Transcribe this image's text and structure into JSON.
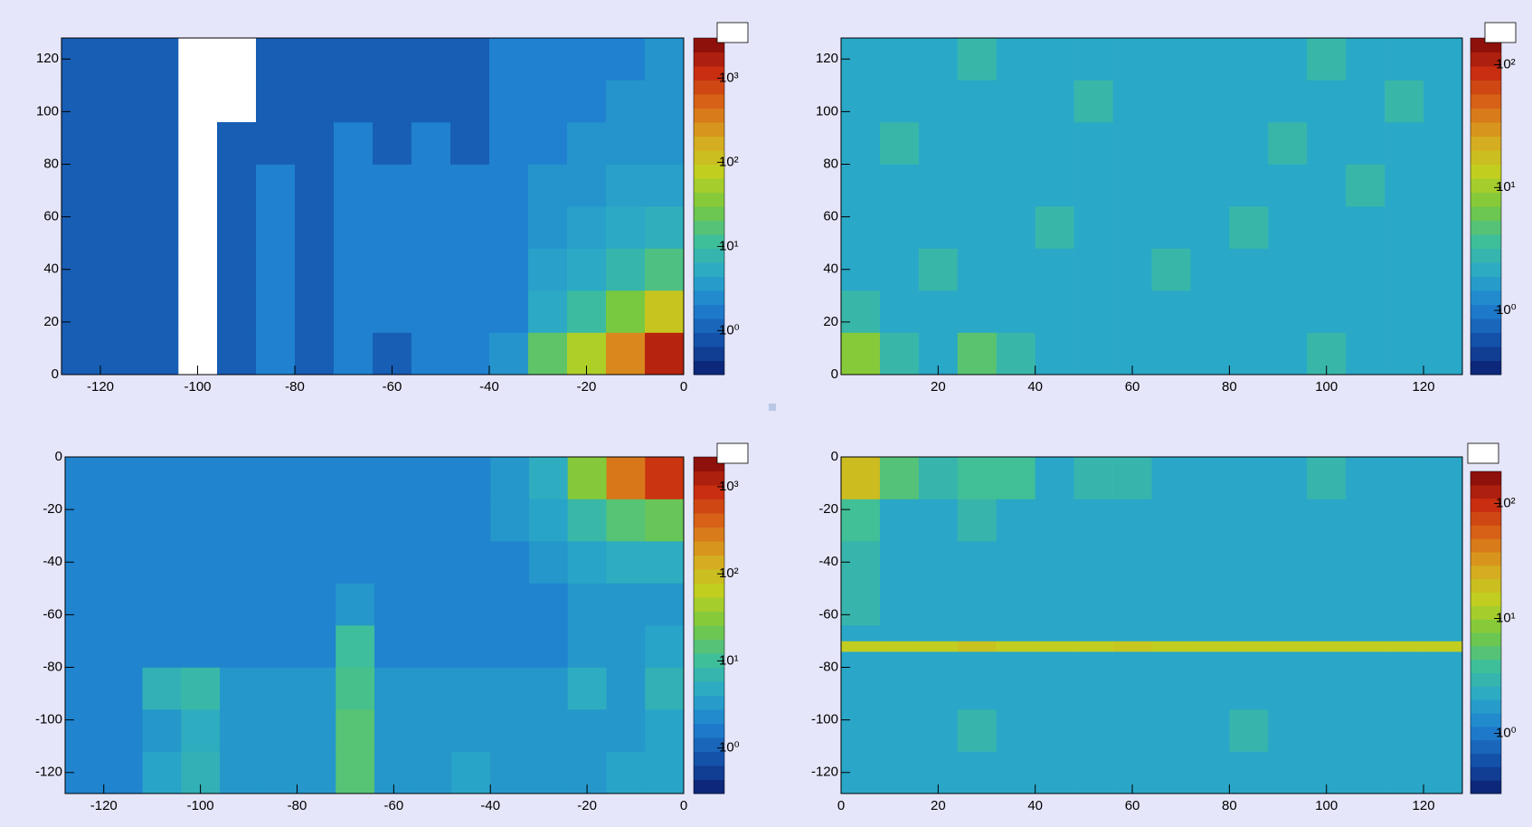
{
  "chart_data": [
    {
      "type": "heatmap",
      "xlim": [
        -128,
        0
      ],
      "ylim": [
        0,
        128
      ],
      "xticks": [
        -120,
        -100,
        -80,
        -60,
        -40,
        -20,
        0
      ],
      "yticks": [
        0,
        20,
        40,
        60,
        80,
        100,
        120
      ],
      "xbins": [
        -128,
        -120,
        -112,
        -104,
        -96,
        -88,
        -80,
        -72,
        -64,
        -56,
        -48,
        -40,
        -32,
        -24,
        -16,
        -8,
        0
      ],
      "ybins": [
        0,
        16,
        32,
        48,
        64,
        80,
        96,
        112,
        128
      ],
      "z": [
        [
          1,
          1,
          1,
          null,
          1,
          2,
          1,
          2,
          1,
          2,
          2,
          3,
          20,
          60,
          300,
          1500
        ],
        [
          1,
          1,
          1,
          null,
          1,
          2,
          1,
          2,
          2,
          2,
          2,
          2,
          5,
          10,
          30,
          100
        ],
        [
          1,
          1,
          1,
          null,
          1,
          2,
          1,
          2,
          2,
          2,
          2,
          2,
          4,
          5,
          8,
          15
        ],
        [
          1,
          1,
          1,
          null,
          1,
          2,
          1,
          2,
          2,
          2,
          2,
          2,
          3,
          4,
          5,
          6
        ],
        [
          1,
          1,
          1,
          null,
          1,
          2,
          1,
          2,
          2,
          2,
          2,
          2,
          3,
          3,
          4,
          4
        ],
        [
          1,
          1,
          1,
          null,
          1,
          1,
          1,
          2,
          1,
          2,
          1,
          2,
          2,
          3,
          3,
          3
        ],
        [
          1,
          1,
          1,
          null,
          null,
          1,
          1,
          1,
          1,
          1,
          1,
          2,
          2,
          2,
          3,
          3
        ],
        [
          1,
          1,
          1,
          null,
          null,
          1,
          1,
          1,
          1,
          1,
          1,
          2,
          2,
          2,
          2,
          3
        ]
      ],
      "zlog": true,
      "zlim": [
        0.3,
        3000
      ],
      "zticks": [
        {
          "value": 1,
          "label": "10⁰"
        },
        {
          "value": 10,
          "label": "10¹"
        },
        {
          "value": 100,
          "label": "10²"
        },
        {
          "value": 1000,
          "label": "10³"
        }
      ],
      "palette": [
        "#0b1e6e",
        "#1450a8",
        "#1f7fd0",
        "#2aa8c8",
        "#40bf98",
        "#78c840",
        "#c0d020",
        "#d8a820",
        "#d86818",
        "#c82c10",
        "#800a0a"
      ]
    },
    {
      "type": "heatmap",
      "xlim": [
        0,
        128
      ],
      "ylim": [
        0,
        128
      ],
      "xticks": [
        20,
        40,
        60,
        80,
        100,
        120
      ],
      "yticks": [
        0,
        20,
        40,
        60,
        80,
        100,
        120
      ],
      "xbins": [
        0,
        8,
        16,
        24,
        32,
        40,
        48,
        56,
        64,
        72,
        80,
        88,
        96,
        104,
        112,
        120,
        128
      ],
      "ybins": [
        0,
        16,
        32,
        48,
        64,
        80,
        96,
        112,
        128
      ],
      "z": [
        [
          8,
          3,
          2,
          5,
          3,
          2,
          2,
          2,
          2,
          2,
          2,
          2,
          3,
          2,
          2,
          2
        ],
        [
          3,
          2,
          2,
          2,
          2,
          2,
          2,
          2,
          2,
          2,
          2,
          2,
          2,
          2,
          2,
          2
        ],
        [
          2,
          2,
          3,
          2,
          2,
          2,
          2,
          2,
          3,
          2,
          2,
          2,
          2,
          2,
          2,
          2
        ],
        [
          2,
          2,
          2,
          2,
          2,
          3,
          2,
          2,
          2,
          2,
          3,
          2,
          2,
          2,
          2,
          2
        ],
        [
          2,
          2,
          2,
          2,
          2,
          2,
          2,
          2,
          2,
          2,
          2,
          2,
          2,
          3,
          2,
          2
        ],
        [
          2,
          3,
          2,
          2,
          2,
          2,
          2,
          2,
          2,
          2,
          2,
          3,
          2,
          2,
          2,
          2
        ],
        [
          2,
          2,
          2,
          2,
          2,
          2,
          3,
          2,
          2,
          2,
          2,
          2,
          2,
          2,
          3,
          2
        ],
        [
          2,
          2,
          2,
          3,
          2,
          2,
          2,
          2,
          2,
          2,
          2,
          2,
          3,
          2,
          2,
          2
        ]
      ],
      "zlog": true,
      "zlim": [
        0.3,
        165
      ],
      "zticks": [
        {
          "value": 1,
          "label": "10⁰"
        },
        {
          "value": 10,
          "label": "10¹"
        },
        {
          "value": 100,
          "label": "10²"
        }
      ],
      "palette": [
        "#0b1e6e",
        "#1450a8",
        "#1f7fd0",
        "#2aa8c8",
        "#40bf98",
        "#78c840",
        "#c0d020",
        "#d8a820",
        "#d86818",
        "#c82c10",
        "#800a0a"
      ]
    },
    {
      "type": "heatmap",
      "xlim": [
        -128,
        0
      ],
      "ylim": [
        -128,
        0
      ],
      "xticks": [
        -120,
        -100,
        -80,
        -60,
        -40,
        -20,
        0
      ],
      "yticks": [
        -120,
        -100,
        -80,
        -60,
        -40,
        -20,
        0
      ],
      "xbins": [
        -128,
        -120,
        -112,
        -104,
        -96,
        -88,
        -80,
        -72,
        -64,
        -56,
        -48,
        -40,
        -32,
        -24,
        -16,
        -8,
        0
      ],
      "ybins": [
        -128,
        -112,
        -96,
        -80,
        -64,
        -48,
        -32,
        -16,
        0
      ],
      "z": [
        [
          2,
          2,
          4,
          6,
          3,
          3,
          3,
          15,
          3,
          3,
          4,
          3,
          3,
          3,
          4,
          4
        ],
        [
          2,
          2,
          3,
          5,
          3,
          3,
          3,
          15,
          3,
          3,
          3,
          3,
          3,
          3,
          3,
          4
        ],
        [
          2,
          2,
          6,
          8,
          3,
          3,
          3,
          12,
          3,
          3,
          3,
          3,
          3,
          5,
          3,
          6
        ],
        [
          2,
          2,
          2,
          2,
          2,
          2,
          2,
          10,
          2,
          2,
          2,
          2,
          2,
          3,
          3,
          4
        ],
        [
          2,
          2,
          2,
          2,
          2,
          2,
          2,
          3,
          2,
          2,
          2,
          2,
          2,
          3,
          3,
          3
        ],
        [
          2,
          2,
          2,
          2,
          2,
          2,
          2,
          2,
          2,
          2,
          2,
          2,
          3,
          4,
          5,
          5
        ],
        [
          2,
          2,
          2,
          2,
          2,
          2,
          2,
          2,
          2,
          2,
          2,
          3,
          4,
          8,
          15,
          20
        ],
        [
          2,
          2,
          2,
          2,
          2,
          2,
          2,
          2,
          2,
          2,
          2,
          3,
          5,
          30,
          300,
          800
        ]
      ],
      "zlog": true,
      "zlim": [
        0.3,
        2200
      ],
      "zticks": [
        {
          "value": 1,
          "label": "10⁰"
        },
        {
          "value": 10,
          "label": "10¹"
        },
        {
          "value": 100,
          "label": "10²"
        },
        {
          "value": 1000,
          "label": "10³"
        }
      ],
      "palette": [
        "#0b1e6e",
        "#1450a8",
        "#1f7fd0",
        "#2aa8c8",
        "#40bf98",
        "#78c840",
        "#c0d020",
        "#d8a820",
        "#d86818",
        "#c82c10",
        "#800a0a"
      ]
    },
    {
      "type": "heatmap",
      "xlim": [
        0,
        128
      ],
      "ylim": [
        -128,
        0
      ],
      "xticks": [
        0,
        20,
        40,
        60,
        80,
        100,
        120
      ],
      "yticks": [
        -120,
        -100,
        -80,
        -60,
        -40,
        -20,
        0
      ],
      "xbins": [
        0,
        8,
        16,
        24,
        32,
        40,
        48,
        56,
        64,
        72,
        80,
        88,
        96,
        104,
        112,
        120,
        128
      ],
      "ybins": [
        -128,
        -112,
        -96,
        -80,
        -74,
        -70,
        -64,
        -48,
        -32,
        -16,
        0
      ],
      "z": [
        [
          2,
          2,
          2,
          2,
          2,
          2,
          2,
          2,
          2,
          2,
          2,
          2,
          2,
          2,
          2,
          2
        ],
        [
          2,
          2,
          2,
          3,
          2,
          2,
          2,
          2,
          2,
          2,
          3,
          2,
          2,
          2,
          2,
          2
        ],
        [
          2,
          2,
          2,
          2,
          2,
          2,
          2,
          2,
          2,
          2,
          2,
          2,
          2,
          2,
          2,
          2
        ],
        [
          2,
          2,
          2,
          2,
          2,
          2,
          2,
          2,
          2,
          2,
          2,
          2,
          2,
          2,
          2,
          2
        ],
        [
          15,
          15,
          15,
          18,
          15,
          15,
          15,
          17,
          15,
          15,
          15,
          15,
          15,
          15,
          15,
          15
        ],
        [
          2,
          2,
          2,
          2,
          2,
          2,
          2,
          2,
          2,
          2,
          2,
          2,
          2,
          2,
          2,
          2
        ],
        [
          3,
          2,
          2,
          2,
          2,
          2,
          2,
          2,
          2,
          2,
          2,
          2,
          2,
          2,
          2,
          2
        ],
        [
          3,
          2,
          2,
          2,
          2,
          2,
          2,
          2,
          2,
          2,
          2,
          2,
          2,
          2,
          2,
          2
        ],
        [
          4,
          2,
          2,
          3,
          2,
          2,
          2,
          2,
          2,
          2,
          2,
          2,
          2,
          2,
          2,
          2
        ],
        [
          20,
          5,
          3,
          4,
          4,
          2,
          3,
          3,
          2,
          2,
          2,
          2,
          3,
          2,
          2,
          2
        ]
      ],
      "zlog": true,
      "zlim": [
        0.3,
        190
      ],
      "zticks": [
        {
          "value": 1,
          "label": "10⁰"
        },
        {
          "value": 10,
          "label": "10¹"
        },
        {
          "value": 100,
          "label": "10²"
        }
      ],
      "palette": [
        "#0b1e6e",
        "#1450a8",
        "#1f7fd0",
        "#2aa8c8",
        "#40bf98",
        "#78c840",
        "#c0d020",
        "#d8a820",
        "#d86818",
        "#c82c10",
        "#800a0a"
      ]
    }
  ]
}
